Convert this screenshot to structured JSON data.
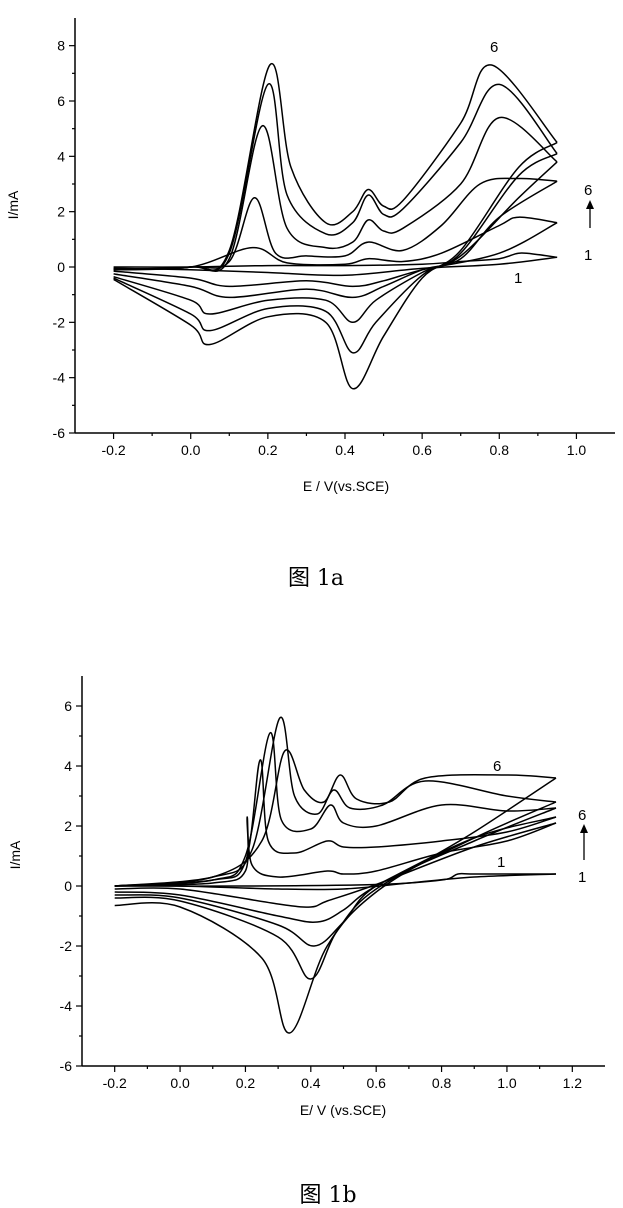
{
  "chart_data": [
    {
      "type": "line",
      "id": "1a",
      "caption": "图 1a",
      "xlabel": "E / V(vs.SCE)",
      "ylabel": "I/mA",
      "xlim": [
        -0.3,
        1.1
      ],
      "ylim": [
        -6,
        9
      ],
      "x_ticks": [
        -0.2,
        0.0,
        0.2,
        0.4,
        0.6,
        0.8,
        1.0
      ],
      "x_tick_labels": [
        "-0.2",
        "0.0",
        "0.2",
        "0.4",
        "0.6",
        "0.8",
        "1.0"
      ],
      "y_ticks": [
        -6,
        -4,
        -2,
        0,
        2,
        4,
        6,
        8
      ],
      "y_tick_labels": [
        "-6",
        "-4",
        "-2",
        "0",
        "2",
        "4",
        "6",
        "8"
      ],
      "annotations": {
        "curve_top_label": "6",
        "curve_bottom_label": "1",
        "arrow_top_label": "6",
        "arrow_bottom_label": "1"
      },
      "series": [
        {
          "forward": [
            [
              -0.2,
              0.0
            ],
            [
              0.0,
              0.0
            ],
            [
              0.2,
              0.05
            ],
            [
              0.4,
              0.05
            ],
            [
              0.6,
              0.1
            ],
            [
              0.7,
              0.2
            ],
            [
              0.8,
              0.3
            ],
            [
              0.85,
              0.5
            ],
            [
              0.9,
              0.45
            ],
            [
              0.95,
              0.35
            ]
          ],
          "reverse": [
            [
              0.95,
              0.35
            ],
            [
              0.8,
              0.1
            ],
            [
              0.6,
              -0.05
            ],
            [
              0.4,
              -0.3
            ],
            [
              0.2,
              -0.2
            ],
            [
              0.0,
              -0.1
            ],
            [
              -0.2,
              -0.05
            ]
          ]
        },
        {
          "forward": [
            [
              -0.2,
              -0.05
            ],
            [
              0.0,
              0.0
            ],
            [
              0.16,
              0.7
            ],
            [
              0.25,
              0.15
            ],
            [
              0.4,
              0.1
            ],
            [
              0.46,
              0.3
            ],
            [
              0.55,
              0.2
            ],
            [
              0.65,
              0.5
            ],
            [
              0.8,
              1.5
            ],
            [
              0.85,
              1.8
            ],
            [
              0.95,
              1.6
            ]
          ],
          "reverse": [
            [
              0.95,
              1.6
            ],
            [
              0.8,
              0.5
            ],
            [
              0.6,
              -0.1
            ],
            [
              0.5,
              -0.5
            ],
            [
              0.42,
              -0.7
            ],
            [
              0.3,
              -0.5
            ],
            [
              0.1,
              -0.7
            ],
            [
              0.0,
              -0.4
            ],
            [
              -0.2,
              -0.15
            ]
          ]
        },
        {
          "forward": [
            [
              -0.2,
              -0.1
            ],
            [
              0.0,
              0.0
            ],
            [
              0.1,
              0.2
            ],
            [
              0.165,
              2.5
            ],
            [
              0.22,
              0.5
            ],
            [
              0.3,
              0.4
            ],
            [
              0.4,
              0.4
            ],
            [
              0.46,
              0.9
            ],
            [
              0.55,
              0.6
            ],
            [
              0.65,
              1.5
            ],
            [
              0.75,
              3.0
            ],
            [
              0.85,
              3.2
            ],
            [
              0.95,
              3.1
            ]
          ],
          "reverse": [
            [
              0.95,
              3.1
            ],
            [
              0.8,
              1.8
            ],
            [
              0.7,
              0.3
            ],
            [
              0.6,
              -0.1
            ],
            [
              0.5,
              -0.7
            ],
            [
              0.42,
              -1.1
            ],
            [
              0.3,
              -0.8
            ],
            [
              0.1,
              -1.1
            ],
            [
              0.0,
              -0.7
            ],
            [
              -0.2,
              -0.25
            ]
          ]
        },
        {
          "forward": [
            [
              -0.2,
              -0.1
            ],
            [
              0.0,
              0.0
            ],
            [
              0.1,
              0.3
            ],
            [
              0.185,
              5.1
            ],
            [
              0.25,
              1.4
            ],
            [
              0.35,
              0.7
            ],
            [
              0.42,
              0.9
            ],
            [
              0.46,
              1.7
            ],
            [
              0.5,
              1.3
            ],
            [
              0.55,
              1.4
            ],
            [
              0.7,
              3.0
            ],
            [
              0.8,
              5.4
            ],
            [
              0.95,
              3.8
            ]
          ],
          "reverse": [
            [
              0.95,
              3.8
            ],
            [
              0.85,
              2.5
            ],
            [
              0.7,
              0.4
            ],
            [
              0.6,
              -0.2
            ],
            [
              0.48,
              -1.2
            ],
            [
              0.42,
              -2.0
            ],
            [
              0.35,
              -1.2
            ],
            [
              0.2,
              -1.2
            ],
            [
              0.05,
              -1.7
            ],
            [
              0.0,
              -1.2
            ],
            [
              -0.2,
              -0.35
            ]
          ]
        },
        {
          "forward": [
            [
              -0.2,
              -0.1
            ],
            [
              0.0,
              0.0
            ],
            [
              0.1,
              0.5
            ],
            [
              0.2,
              6.6
            ],
            [
              0.25,
              2.6
            ],
            [
              0.35,
              1.2
            ],
            [
              0.42,
              1.6
            ],
            [
              0.46,
              2.6
            ],
            [
              0.5,
              1.9
            ],
            [
              0.55,
              2.1
            ],
            [
              0.7,
              4.5
            ],
            [
              0.8,
              6.6
            ],
            [
              0.95,
              4.1
            ]
          ],
          "reverse": [
            [
              0.95,
              4.1
            ],
            [
              0.85,
              3.3
            ],
            [
              0.7,
              0.5
            ],
            [
              0.6,
              -0.3
            ],
            [
              0.48,
              -2.0
            ],
            [
              0.42,
              -3.1
            ],
            [
              0.35,
              -1.6
            ],
            [
              0.2,
              -1.5
            ],
            [
              0.05,
              -2.3
            ],
            [
              0.0,
              -1.7
            ],
            [
              -0.2,
              -0.4
            ]
          ]
        },
        {
          "forward": [
            [
              -0.2,
              -0.1
            ],
            [
              0.0,
              0.0
            ],
            [
              0.1,
              0.6
            ],
            [
              0.205,
              7.3
            ],
            [
              0.26,
              3.6
            ],
            [
              0.35,
              1.6
            ],
            [
              0.42,
              2.0
            ],
            [
              0.46,
              2.8
            ],
            [
              0.5,
              2.2
            ],
            [
              0.55,
              2.4
            ],
            [
              0.7,
              5.2
            ],
            [
              0.78,
              7.3
            ],
            [
              0.95,
              4.5
            ]
          ],
          "reverse": [
            [
              0.95,
              4.5
            ],
            [
              0.85,
              3.6
            ],
            [
              0.7,
              0.6
            ],
            [
              0.6,
              -0.4
            ],
            [
              0.5,
              -2.5
            ],
            [
              0.42,
              -4.4
            ],
            [
              0.35,
              -2.0
            ],
            [
              0.2,
              -1.8
            ],
            [
              0.05,
              -2.8
            ],
            [
              0.0,
              -2.1
            ],
            [
              -0.2,
              -0.45
            ]
          ]
        }
      ]
    },
    {
      "type": "line",
      "id": "1b",
      "caption": "图 1b",
      "xlabel": "E/ V (vs.SCE)",
      "ylabel": "I/mA",
      "xlim": [
        -0.3,
        1.3
      ],
      "ylim": [
        -6,
        7
      ],
      "x_ticks": [
        -0.2,
        0.0,
        0.2,
        0.4,
        0.6,
        0.8,
        1.0,
        1.2
      ],
      "x_tick_labels": [
        "-0.2",
        "0.0",
        "0.2",
        "0.4",
        "0.6",
        "0.8",
        "1.0",
        "1.2"
      ],
      "y_ticks": [
        -6,
        -4,
        -2,
        0,
        2,
        4,
        6
      ],
      "y_tick_labels": [
        "-6",
        "-4",
        "-2",
        "0",
        "2",
        "4",
        "6"
      ],
      "annotations": {
        "curve_top_label": "6",
        "curve_bottom_label": "1",
        "arrow_top_label": "6",
        "arrow_bottom_label": "1"
      },
      "series": [
        {
          "forward": [
            [
              -0.2,
              0.0
            ],
            [
              0.2,
              0.0
            ],
            [
              0.6,
              0.05
            ],
            [
              0.8,
              0.2
            ],
            [
              0.85,
              0.4
            ],
            [
              0.9,
              0.4
            ],
            [
              1.15,
              0.4
            ]
          ],
          "reverse": [
            [
              1.15,
              0.4
            ],
            [
              0.9,
              0.3
            ],
            [
              0.7,
              0.1
            ],
            [
              0.5,
              -0.1
            ],
            [
              0.3,
              -0.1
            ],
            [
              0.0,
              0.0
            ],
            [
              -0.2,
              0.0
            ]
          ]
        },
        {
          "forward": [
            [
              -0.2,
              0.0
            ],
            [
              0.1,
              0.1
            ],
            [
              0.2,
              0.5
            ],
            [
              0.205,
              2.3
            ],
            [
              0.22,
              0.7
            ],
            [
              0.3,
              0.3
            ],
            [
              0.45,
              0.5
            ],
            [
              0.5,
              0.4
            ],
            [
              0.6,
              0.5
            ],
            [
              0.8,
              1.1
            ],
            [
              1.0,
              1.5
            ],
            [
              1.15,
              2.1
            ]
          ],
          "reverse": [
            [
              1.15,
              2.1
            ],
            [
              0.9,
              1.3
            ],
            [
              0.6,
              0.05
            ],
            [
              0.45,
              -0.5
            ],
            [
              0.4,
              -0.7
            ],
            [
              0.3,
              -0.6
            ],
            [
              0.0,
              -0.1
            ],
            [
              -0.2,
              -0.1
            ]
          ]
        },
        {
          "forward": [
            [
              -0.2,
              0.0
            ],
            [
              0.1,
              0.2
            ],
            [
              0.2,
              0.8
            ],
            [
              0.245,
              4.2
            ],
            [
              0.27,
              1.5
            ],
            [
              0.35,
              1.1
            ],
            [
              0.45,
              1.5
            ],
            [
              0.5,
              1.3
            ],
            [
              0.6,
              1.3
            ],
            [
              0.8,
              1.5
            ],
            [
              1.0,
              1.8
            ],
            [
              1.15,
              2.3
            ]
          ],
          "reverse": [
            [
              1.15,
              2.3
            ],
            [
              0.9,
              1.6
            ],
            [
              0.6,
              0.0
            ],
            [
              0.5,
              -0.8
            ],
            [
              0.42,
              -1.2
            ],
            [
              0.3,
              -1.0
            ],
            [
              0.0,
              -0.3
            ],
            [
              -0.2,
              -0.2
            ]
          ]
        },
        {
          "forward": [
            [
              -0.2,
              0.0
            ],
            [
              0.1,
              0.2
            ],
            [
              0.2,
              1.0
            ],
            [
              0.275,
              5.1
            ],
            [
              0.31,
              2.2
            ],
            [
              0.4,
              1.9
            ],
            [
              0.46,
              2.7
            ],
            [
              0.5,
              2.1
            ],
            [
              0.6,
              2.0
            ],
            [
              0.8,
              2.7
            ],
            [
              1.0,
              2.5
            ],
            [
              1.15,
              2.6
            ]
          ],
          "reverse": [
            [
              1.15,
              2.6
            ],
            [
              0.9,
              1.5
            ],
            [
              0.6,
              0.0
            ],
            [
              0.5,
              -1.2
            ],
            [
              0.41,
              -2.0
            ],
            [
              0.3,
              -1.3
            ],
            [
              0.0,
              -0.4
            ],
            [
              -0.2,
              -0.3
            ]
          ]
        },
        {
          "forward": [
            [
              -0.2,
              0.0
            ],
            [
              0.1,
              0.3
            ],
            [
              0.22,
              1.2
            ],
            [
              0.305,
              5.6
            ],
            [
              0.35,
              3.0
            ],
            [
              0.42,
              2.4
            ],
            [
              0.47,
              3.2
            ],
            [
              0.52,
              2.6
            ],
            [
              0.62,
              2.7
            ],
            [
              0.75,
              3.5
            ],
            [
              1.0,
              3.0
            ],
            [
              1.15,
              2.8
            ]
          ],
          "reverse": [
            [
              1.15,
              2.8
            ],
            [
              0.9,
              1.6
            ],
            [
              0.6,
              -0.1
            ],
            [
              0.48,
              -1.5
            ],
            [
              0.4,
              -3.1
            ],
            [
              0.3,
              -1.7
            ],
            [
              0.0,
              -0.5
            ],
            [
              -0.2,
              -0.4
            ]
          ]
        },
        {
          "forward": [
            [
              -0.2,
              0.0
            ],
            [
              0.1,
              0.3
            ],
            [
              0.25,
              1.5
            ],
            [
              0.32,
              4.5
            ],
            [
              0.38,
              3.2
            ],
            [
              0.44,
              2.8
            ],
            [
              0.49,
              3.7
            ],
            [
              0.54,
              2.9
            ],
            [
              0.64,
              2.8
            ],
            [
              0.75,
              3.6
            ],
            [
              1.0,
              3.7
            ],
            [
              1.15,
              3.6
            ]
          ],
          "reverse": [
            [
              1.15,
              3.6
            ],
            [
              0.9,
              1.8
            ],
            [
              0.6,
              -0.2
            ],
            [
              0.45,
              -2.0
            ],
            [
              0.335,
              -4.9
            ],
            [
              0.25,
              -2.4
            ],
            [
              0.0,
              -0.7
            ],
            [
              -0.2,
              -0.65
            ]
          ]
        }
      ]
    }
  ]
}
